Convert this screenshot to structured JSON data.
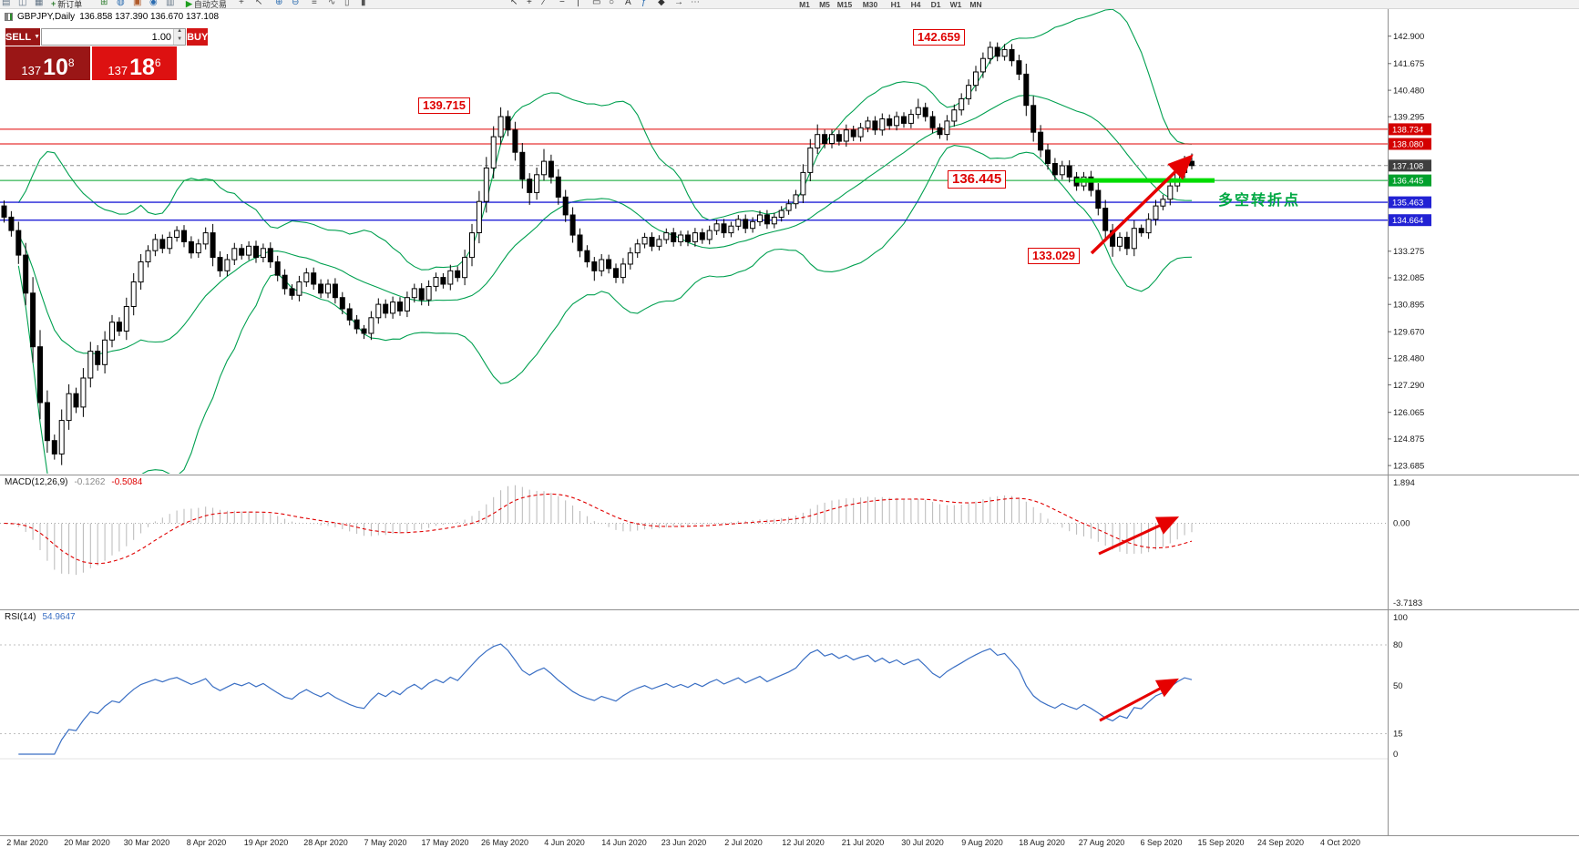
{
  "toolbar": {
    "new_order_label": "新订单",
    "autotrading_label": "自动交易",
    "timeframes": [
      "M1",
      "M5",
      "M15",
      "M30",
      "H1",
      "H4",
      "D1",
      "W1",
      "MN"
    ],
    "icon_names": [
      "charts-grid-icon",
      "new-window-icon",
      "market-watch-icon",
      "add-indicator-icon",
      "profiles-icon",
      "alerts-icon",
      "navigator-icon",
      "terminal-icon",
      "crosshair-icon",
      "cursor-icon",
      "zoom-in-icon",
      "zoom-out-icon",
      "tile-windows-icon",
      "line-chart-icon",
      "bar-chart-icon",
      "candle-chart-icon",
      "pointer-tool-icon",
      "crosshair-tool-icon",
      "trendline-icon",
      "horizontal-line-icon",
      "vertical-line-icon",
      "rectangle-icon",
      "ellipse-icon",
      "text-label-icon",
      "fibonacci-icon",
      "shapes-icon",
      "arrow-object-icon",
      "more-tools-icon"
    ]
  },
  "symbol_bar": {
    "symbol_period": "GBPJPY,Daily",
    "ohlc": "136.858 137.390 136.670 137.108"
  },
  "trade_panel": {
    "sell_label": "SELL",
    "buy_label": "BUY",
    "volume": "1.00",
    "sell_price_prefix": "137",
    "sell_price_big": "10",
    "sell_price_sup": "8",
    "buy_price_prefix": "137",
    "buy_price_big": "18",
    "buy_price_sup": "6"
  },
  "chart_data": {
    "type": "candlestick",
    "title": "GBPJPY Daily with Bollinger Bands, MACD and RSI",
    "first_open": 135.3,
    "closes": [
      134.8,
      134.2,
      133.1,
      131.4,
      129.0,
      126.5,
      124.8,
      124.2,
      125.7,
      126.9,
      126.3,
      127.6,
      128.8,
      128.2,
      129.3,
      130.1,
      129.7,
      130.8,
      131.9,
      132.8,
      133.3,
      133.8,
      133.4,
      133.9,
      134.2,
      133.7,
      133.2,
      133.6,
      134.1,
      133.0,
      132.4,
      132.9,
      133.4,
      133.1,
      133.5,
      133.0,
      133.4,
      132.8,
      132.2,
      131.6,
      131.3,
      131.9,
      132.3,
      131.8,
      131.4,
      131.8,
      131.2,
      130.7,
      130.2,
      129.8,
      129.6,
      130.3,
      130.9,
      130.5,
      131.0,
      130.6,
      131.2,
      131.6,
      131.1,
      131.7,
      132.1,
      131.8,
      132.4,
      132.1,
      133.0,
      134.1,
      135.5,
      137.0,
      138.4,
      139.3,
      138.7,
      137.7,
      136.5,
      135.9,
      136.7,
      137.3,
      136.6,
      135.7,
      134.9,
      134.0,
      133.3,
      132.8,
      132.4,
      132.9,
      132.5,
      132.1,
      132.7,
      133.2,
      133.6,
      133.9,
      133.5,
      133.8,
      134.1,
      133.7,
      134.0,
      133.7,
      134.1,
      133.8,
      134.2,
      134.5,
      134.1,
      134.4,
      134.7,
      134.3,
      134.6,
      134.9,
      134.5,
      134.8,
      135.1,
      135.4,
      135.8,
      136.8,
      137.9,
      138.5,
      138.1,
      138.5,
      138.2,
      138.7,
      138.4,
      138.8,
      139.1,
      138.7,
      139.2,
      138.9,
      139.3,
      139.0,
      139.4,
      139.7,
      139.3,
      138.8,
      138.5,
      139.1,
      139.6,
      140.1,
      140.7,
      141.3,
      141.9,
      142.4,
      142.0,
      142.3,
      141.8,
      141.2,
      139.8,
      138.6,
      137.8,
      137.2,
      136.7,
      137.1,
      136.6,
      136.2,
      136.6,
      136.0,
      135.2,
      134.2,
      133.5,
      133.9,
      133.4,
      134.3,
      134.1,
      134.7,
      135.3,
      135.6,
      136.2,
      136.8,
      137.3,
      137.108
    ],
    "high_overrides": {
      "69": 139.715,
      "75": 137.85,
      "113": 138.95,
      "127": 140.1,
      "137": 142.659,
      "139": 142.55,
      "165": 137.65
    },
    "low_overrides": {
      "7": 123.95,
      "50": 129.35,
      "73": 135.35,
      "82": 131.95,
      "85": 131.85,
      "154": 133.029,
      "156": 133.1
    },
    "dates": [
      "2 Mar 2020",
      "20 Mar 2020",
      "30 Mar 2020",
      "8 Apr 2020",
      "19 Apr 2020",
      "28 Apr 2020",
      "7 May 2020",
      "17 May 2020",
      "26 May 2020",
      "4 Jun 2020",
      "14 Jun 2020",
      "23 Jun 2020",
      "2 Jul 2020",
      "12 Jul 2020",
      "21 Jul 2020",
      "30 Jul 2020",
      "9 Aug 2020",
      "18 Aug 2020",
      "27 Aug 2020",
      "6 Sep 2020",
      "15 Sep 2020",
      "24 Sep 2020",
      "4 Oct 2020"
    ],
    "price_axis_ticks": [
      "142.900",
      "141.675",
      "140.480",
      "139.295",
      "133.275",
      "132.085",
      "130.895",
      "129.670",
      "128.480",
      "127.290",
      "126.065",
      "124.875",
      "123.685"
    ],
    "axis_price_labels": [
      {
        "value": "138.734",
        "bg": "#D40000"
      },
      {
        "value": "138.080",
        "bg": "#D40000"
      },
      {
        "value": "137.108",
        "bg": "#3F3F3F"
      },
      {
        "value": "136.445",
        "bg": "#00A02C"
      },
      {
        "value": "135.463",
        "bg": "#2222D4"
      },
      {
        "value": "134.664",
        "bg": "#2222D4"
      }
    ],
    "levels": {
      "red_lines": [
        138.734,
        138.08
      ],
      "green_line": 136.445,
      "thick_green_line": 136.445,
      "blue_lines": [
        135.463,
        134.664
      ],
      "current_price": 137.108
    },
    "bollinger": {
      "period": 20,
      "deviation": 2,
      "color": "#00A050"
    },
    "macd": {
      "label": "MACD(12,26,9)",
      "value": "-0.1262",
      "signal_value": "-0.5084",
      "axis_labels": [
        "1.894",
        "0.00",
        "-3.7183"
      ],
      "max": 1.894,
      "min": -3.7183,
      "histogram_color": "#B8B8B8",
      "signal_color": "#E00000"
    },
    "rsi": {
      "label": "RSI(14)",
      "value": "54.9647",
      "axis_labels": [
        "100",
        "80",
        "50",
        "15",
        "0"
      ],
      "axis_values": [
        100,
        80,
        50,
        15,
        0
      ],
      "levels": [
        80,
        15
      ],
      "color": "#3A6FC4"
    },
    "annotations": {
      "peak_high": "142.659",
      "swing_high": "139.715",
      "pivot": "136.445",
      "swing_low": "133.029",
      "note_cn": "多空转折点"
    }
  }
}
